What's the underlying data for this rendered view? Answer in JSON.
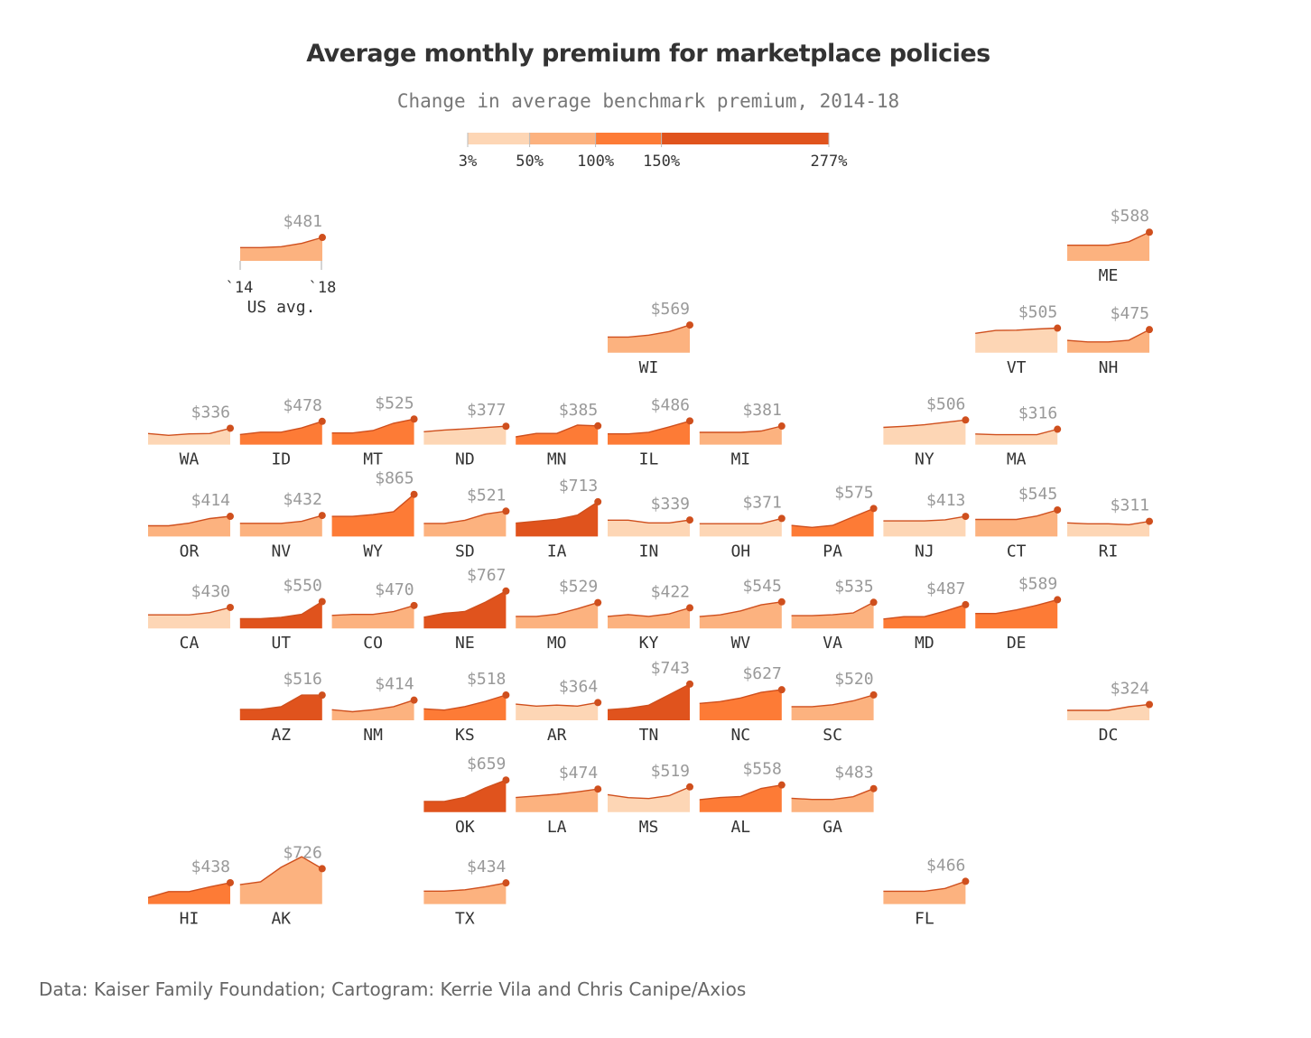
{
  "title": "Average monthly premium for marketplace policies",
  "subtitle": "Change in average benchmark premium, 2014-18",
  "source": "Data: Kaiser Family Foundation; Cartogram: Kerrie Vila and Chris Canipe/Axios",
  "legend": {
    "breaks": [
      3,
      50,
      100,
      150,
      277
    ],
    "labels": [
      "3%",
      "50%",
      "100%",
      "150%",
      "277%"
    ],
    "colors": [
      "#fdd6b5",
      "#fcb27f",
      "#fd7b36",
      "#e0531d"
    ]
  },
  "accent_color": "#cf4f1d",
  "chart_data": {
    "type": "area",
    "x": [
      2014,
      2015,
      2016,
      2017,
      2018
    ],
    "us_avg": {
      "label": "US avg.",
      "start_tick": "`14",
      "end_tick": "`18",
      "value_label": "$481",
      "values": [
        273,
        273,
        291,
        359,
        481
      ],
      "color": "#fcb27f"
    },
    "states": [
      {
        "code": "ME",
        "value_label": "$588",
        "col": 10,
        "row": 0,
        "values": [
          320,
          320,
          320,
          392,
          588
        ],
        "color": "#fcb27f"
      },
      {
        "code": "WI",
        "value_label": "$569",
        "col": 5,
        "row": 1,
        "values": [
          322,
          322,
          362,
          435,
          569
        ],
        "color": "#fcb27f"
      },
      {
        "code": "VT",
        "value_label": "$505",
        "col": 9,
        "row": 1,
        "values": [
          399,
          458,
          463,
          487,
          505
        ],
        "color": "#fdd6b5"
      },
      {
        "code": "NH",
        "value_label": "$475",
        "col": 10,
        "row": 1,
        "values": [
          254,
          222,
          222,
          258,
          475
        ],
        "color": "#fcb27f"
      },
      {
        "code": "WA",
        "value_label": "$336",
        "col": 0,
        "row": 2,
        "values": [
          227,
          191,
          220,
          227,
          336
        ],
        "color": "#fdd6b5"
      },
      {
        "code": "ID",
        "value_label": "$478",
        "col": 1,
        "row": 2,
        "values": [
          208,
          256,
          256,
          342,
          478
        ],
        "color": "#fd7b36"
      },
      {
        "code": "MT",
        "value_label": "$525",
        "col": 2,
        "row": 2,
        "values": [
          238,
          238,
          288,
          438,
          525
        ],
        "color": "#fd7b36"
      },
      {
        "code": "ND",
        "value_label": "$377",
        "col": 3,
        "row": 2,
        "values": [
          264,
          300,
          322,
          350,
          377
        ],
        "color": "#fdd6b5"
      },
      {
        "code": "MN",
        "value_label": "$385",
        "col": 4,
        "row": 2,
        "values": [
          160,
          230,
          230,
          400,
          385
        ],
        "color": "#fd7b36"
      },
      {
        "code": "IL",
        "value_label": "$486",
        "col": 5,
        "row": 2,
        "values": [
          221,
          221,
          253,
          365,
          486
        ],
        "color": "#fd7b36"
      },
      {
        "code": "MI",
        "value_label": "$381",
        "col": 6,
        "row": 2,
        "values": [
          252,
          252,
          252,
          279,
          381
        ],
        "color": "#fcb27f"
      },
      {
        "code": "NY",
        "value_label": "$506",
        "col": 8,
        "row": 2,
        "values": [
          353,
          376,
          408,
          457,
          506
        ],
        "color": "#fdd6b5"
      },
      {
        "code": "MA",
        "value_label": "$316",
        "col": 9,
        "row": 2,
        "values": [
          219,
          203,
          203,
          203,
          316
        ],
        "color": "#fdd6b5"
      },
      {
        "code": "OR",
        "value_label": "$414",
        "col": 0,
        "row": 3,
        "values": [
          221,
          221,
          274,
          369,
          414
        ],
        "color": "#fcb27f"
      },
      {
        "code": "NV",
        "value_label": "$432",
        "col": 1,
        "row": 3,
        "values": [
          271,
          271,
          271,
          311,
          432
        ],
        "color": "#fcb27f"
      },
      {
        "code": "WY",
        "value_label": "$865",
        "col": 2,
        "row": 3,
        "values": [
          413,
          413,
          450,
          510,
          865
        ],
        "color": "#fd7b36"
      },
      {
        "code": "SD",
        "value_label": "$521",
        "col": 3,
        "row": 3,
        "values": [
          269,
          269,
          333,
          460,
          521
        ],
        "color": "#fcb27f"
      },
      {
        "code": "IA",
        "value_label": "$713",
        "col": 4,
        "row": 3,
        "values": [
          274,
          315,
          353,
          439,
          713
        ],
        "color": "#e0531d"
      },
      {
        "code": "IN",
        "value_label": "$339",
        "col": 5,
        "row": 3,
        "values": [
          336,
          336,
          280,
          280,
          339
        ],
        "color": "#fdd6b5"
      },
      {
        "code": "OH",
        "value_label": "$371",
        "col": 6,
        "row": 3,
        "values": [
          263,
          263,
          263,
          263,
          371
        ],
        "color": "#fdd6b5"
      },
      {
        "code": "PA",
        "value_label": "$575",
        "col": 7,
        "row": 3,
        "values": [
          228,
          187,
          228,
          404,
          575
        ],
        "color": "#fd7b36"
      },
      {
        "code": "NJ",
        "value_label": "$413",
        "col": 8,
        "row": 3,
        "values": [
          321,
          321,
          321,
          342,
          413
        ],
        "color": "#fdd6b5"
      },
      {
        "code": "CT",
        "value_label": "$545",
        "col": 9,
        "row": 3,
        "values": [
          350,
          350,
          350,
          420,
          545
        ],
        "color": "#fcb27f"
      },
      {
        "code": "RI",
        "value_label": "$311",
        "col": 10,
        "row": 3,
        "values": [
          279,
          262,
          262,
          242,
          311
        ],
        "color": "#fdd6b5"
      },
      {
        "code": "CA",
        "value_label": "$430",
        "col": 0,
        "row": 4,
        "values": [
          278,
          278,
          278,
          325,
          430
        ],
        "color": "#fdd6b5"
      },
      {
        "code": "UT",
        "value_label": "$550",
        "col": 1,
        "row": 4,
        "values": [
          198,
          198,
          228,
          288,
          550
        ],
        "color": "#e0531d"
      },
      {
        "code": "CO",
        "value_label": "$470",
        "col": 2,
        "row": 4,
        "values": [
          266,
          287,
          287,
          345,
          470
        ],
        "color": "#fcb27f"
      },
      {
        "code": "NE",
        "value_label": "$767",
        "col": 3,
        "row": 4,
        "values": [
          229,
          309,
          346,
          538,
          767
        ],
        "color": "#e0531d"
      },
      {
        "code": "MO",
        "value_label": "$529",
        "col": 4,
        "row": 4,
        "values": [
          246,
          246,
          292,
          403,
          529
        ],
        "color": "#fcb27f"
      },
      {
        "code": "KY",
        "value_label": "$422",
        "col": 5,
        "row": 4,
        "values": [
          247,
          284,
          247,
          298,
          422
        ],
        "color": "#fcb27f"
      },
      {
        "code": "WV",
        "value_label": "$545",
        "col": 6,
        "row": 4,
        "values": [
          243,
          278,
          360,
          484,
          545
        ],
        "color": "#fcb27f"
      },
      {
        "code": "VA",
        "value_label": "$535",
        "col": 7,
        "row": 4,
        "values": [
          262,
          262,
          280,
          316,
          535
        ],
        "color": "#fcb27f"
      },
      {
        "code": "MD",
        "value_label": "$487",
        "col": 8,
        "row": 4,
        "values": [
          193,
          241,
          241,
          354,
          487
        ],
        "color": "#fd7b36"
      },
      {
        "code": "DE",
        "value_label": "$589",
        "col": 9,
        "row": 4,
        "values": [
          305,
          305,
          379,
          475,
          589
        ],
        "color": "#fd7b36"
      },
      {
        "code": "AZ",
        "value_label": "$516",
        "col": 1,
        "row": 5,
        "values": [
          222,
          222,
          278,
          516,
          516
        ],
        "color": "#e0531d"
      },
      {
        "code": "NM",
        "value_label": "$414",
        "col": 2,
        "row": 5,
        "values": [
          216,
          176,
          216,
          279,
          414
        ],
        "color": "#fcb27f"
      },
      {
        "code": "KS",
        "value_label": "$518",
        "col": 3,
        "row": 5,
        "values": [
          236,
          210,
          281,
          389,
          518
        ],
        "color": "#fd7b36"
      },
      {
        "code": "AR",
        "value_label": "$364",
        "col": 4,
        "row": 5,
        "values": [
          332,
          291,
          311,
          291,
          364
        ],
        "color": "#fdd6b5"
      },
      {
        "code": "TN",
        "value_label": "$743",
        "col": 5,
        "row": 5,
        "values": [
          216,
          247,
          309,
          526,
          743
        ],
        "color": "#e0531d"
      },
      {
        "code": "NC",
        "value_label": "$627",
        "col": 6,
        "row": 5,
        "values": [
          347,
          384,
          457,
          573,
          627
        ],
        "color": "#fd7b36"
      },
      {
        "code": "SC",
        "value_label": "$520",
        "col": 7,
        "row": 5,
        "values": [
          279,
          279,
          319,
          398,
          520
        ],
        "color": "#fcb27f"
      },
      {
        "code": "DC",
        "value_label": "$324",
        "col": 10,
        "row": 5,
        "values": [
          203,
          203,
          203,
          277,
          324
        ],
        "color": "#fdd6b5"
      },
      {
        "code": "OK",
        "value_label": "$659",
        "col": 3,
        "row": 6,
        "values": [
          220,
          220,
          305,
          499,
          659
        ],
        "color": "#e0531d"
      },
      {
        "code": "LA",
        "value_label": "$474",
        "col": 4,
        "row": 6,
        "values": [
          300,
          333,
          367,
          416,
          474
        ],
        "color": "#fcb27f"
      },
      {
        "code": "MS",
        "value_label": "$519",
        "col": 5,
        "row": 6,
        "values": [
          359,
          299,
          280,
          338,
          519
        ],
        "color": "#fdd6b5"
      },
      {
        "code": "AL",
        "value_label": "$558",
        "col": 6,
        "row": 6,
        "values": [
          258,
          300,
          322,
          487,
          558
        ],
        "color": "#fd7b36"
      },
      {
        "code": "GA",
        "value_label": "$483",
        "col": 7,
        "row": 6,
        "values": [
          285,
          262,
          262,
          317,
          483
        ],
        "color": "#fcb27f"
      },
      {
        "code": "HI",
        "value_label": "$438",
        "col": 0,
        "row": 7,
        "values": [
          134,
          255,
          255,
          352,
          438
        ],
        "color": "#fd7b36"
      },
      {
        "code": "AK",
        "value_label": "$726",
        "col": 1,
        "row": 7,
        "values": [
          399,
          456,
          753,
          970,
          726
        ],
        "color": "#fcb27f"
      },
      {
        "code": "TX",
        "value_label": "$434",
        "col": 3,
        "row": 7,
        "values": [
          264,
          264,
          293,
          355,
          434
        ],
        "color": "#fcb27f"
      },
      {
        "code": "FL",
        "value_label": "$466",
        "col": 8,
        "row": 7,
        "values": [
          263,
          263,
          263,
          321,
          466
        ],
        "color": "#fcb27f"
      }
    ]
  }
}
